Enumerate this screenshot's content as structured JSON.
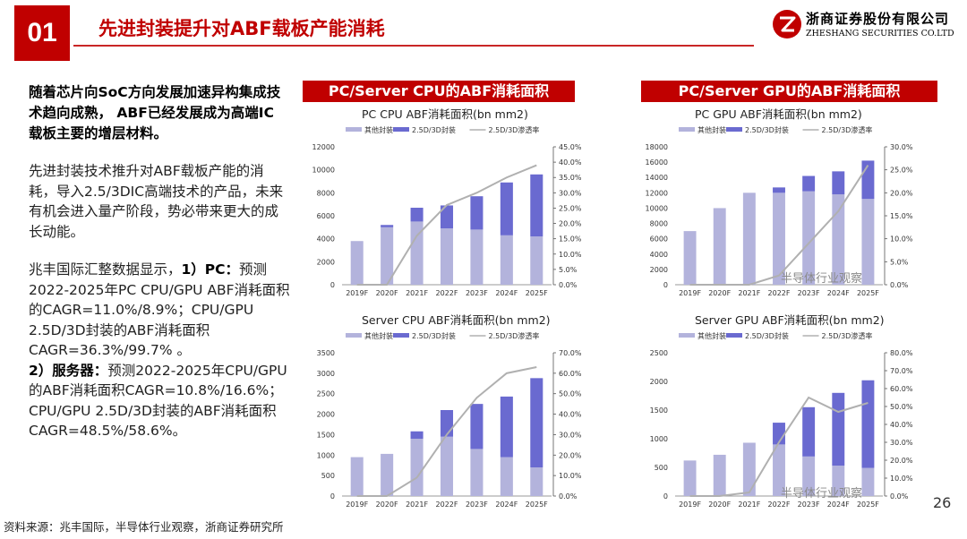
{
  "header": {
    "number": "01",
    "title": "先进封装提升对ABF载板产能消耗",
    "logo_cn": "浙商证券股份有限公司",
    "logo_en": "ZHESHANG SECURITIES CO.LTD"
  },
  "left": {
    "bold_text": "随着芯片向SoC方向发展加速异构集成技术趋向成熟， ABF已经发展成为高端IC载板主要的增层材料。",
    "para": "先进封装技术推升对ABF载板产能的消耗，导入2.5/3DIC高端技术的产品，未来有机会进入量产阶段，势必带来更大的成长动能。",
    "data_intro": "兆丰国际汇整数据显示，",
    "pc_label": "1）PC：",
    "pc_text": "预测2022-2025年PC CPU/GPU ABF消耗面积的CAGR=11.0%/8.9%；CPU/GPU 2.5D/3D封装的ABF消耗面积CAGR=36.3%/99.7% 。",
    "server_label": "2）服务器：",
    "server_text": "预测2022-2025年CPU/GPU的ABF消耗面积CAGR=10.8%/16.6%； CPU/GPU 2.5D/3D封装的ABF消耗面积CAGR=48.5%/58.6%。"
  },
  "banners": {
    "cpu": "PC/Server CPU的ABF消耗面积",
    "gpu": "PC/Server GPU的ABF消耗面积"
  },
  "footer": {
    "source": "资料来源：兆丰国际，半导体行业观察，浙商证券研究所",
    "page": "26",
    "watermark": "半导体行业观察"
  },
  "colors": {
    "brand_red": "#c00000",
    "other_pkg": "#b3b3dc",
    "adv_pkg": "#6a6ad0",
    "penetration_line": "#b0b0b0"
  },
  "chart_data": [
    {
      "id": "pc-cpu",
      "type": "bar",
      "title": "PC CPU ABF消耗面积(bn mm2)",
      "legend": [
        "其他封装",
        "2.5D/3D封装",
        "2.5D/3D渗透率"
      ],
      "categories": [
        "2019F",
        "2020F",
        "2021F",
        "2022F",
        "2023F",
        "2024F",
        "2025F"
      ],
      "series": [
        {
          "name": "其他封装",
          "kind": "bar-stack",
          "values": [
            3800,
            5000,
            5500,
            4900,
            4800,
            4300,
            4200
          ]
        },
        {
          "name": "2.5D/3D封装",
          "kind": "bar-stack",
          "values": [
            0,
            200,
            1200,
            2000,
            2900,
            4600,
            5400
          ]
        },
        {
          "name": "2.5D/3D渗透率",
          "kind": "line-right",
          "values": [
            0.0,
            0.0,
            0.16,
            0.26,
            0.3,
            0.35,
            0.39
          ]
        }
      ],
      "y_ticks": [
        0,
        2000,
        4000,
        6000,
        8000,
        10000,
        12000
      ],
      "y2_ticks": [
        "0.0%",
        "5.0%",
        "10.0%",
        "15.0%",
        "20.0%",
        "25.0%",
        "30.0%",
        "35.0%",
        "40.0%",
        "45.0%"
      ],
      "ylim": [
        0,
        12000
      ],
      "y2lim": [
        0,
        0.45
      ]
    },
    {
      "id": "pc-gpu",
      "type": "bar",
      "title": "PC GPU ABF消耗面积(bn mm2)",
      "legend": [
        "其他封装",
        "2.5D/3D封装",
        "2.5D/3D渗透率"
      ],
      "categories": [
        "2019F",
        "2020F",
        "2021F",
        "2022F",
        "2023F",
        "2024F",
        "2025F"
      ],
      "series": [
        {
          "name": "其他封装",
          "kind": "bar-stack",
          "values": [
            7000,
            10000,
            12000,
            12000,
            12200,
            11800,
            11200
          ]
        },
        {
          "name": "2.5D/3D封装",
          "kind": "bar-stack",
          "values": [
            0,
            0,
            0,
            700,
            2000,
            3000,
            5000
          ]
        },
        {
          "name": "2.5D/3D渗透率",
          "kind": "line-right",
          "values": [
            0.0,
            0.0,
            0.0,
            0.02,
            0.09,
            0.16,
            0.26
          ]
        }
      ],
      "y_ticks": [
        0,
        2000,
        4000,
        6000,
        8000,
        10000,
        12000,
        14000,
        16000,
        18000
      ],
      "y2_ticks": [
        "0.0%",
        "5.0%",
        "10.0%",
        "15.0%",
        "20.0%",
        "25.0%",
        "30.0%"
      ],
      "ylim": [
        0,
        18000
      ],
      "y2lim": [
        0,
        0.3
      ]
    },
    {
      "id": "server-cpu",
      "type": "bar",
      "title": "Server CPU ABF消耗面积(bn mm2)",
      "legend": [
        "其他封装",
        "2.5D/3D封装",
        "2.5D/3D渗透率"
      ],
      "categories": [
        "2019F",
        "2020F",
        "2021F",
        "2022F",
        "2023F",
        "2024F",
        "2025F"
      ],
      "series": [
        {
          "name": "其他封装",
          "kind": "bar-stack",
          "values": [
            950,
            1030,
            1400,
            1450,
            1150,
            950,
            700
          ]
        },
        {
          "name": "2.5D/3D封装",
          "kind": "bar-stack",
          "values": [
            0,
            0,
            180,
            650,
            1100,
            1480,
            2180
          ]
        },
        {
          "name": "2.5D/3D渗透率",
          "kind": "line-right",
          "values": [
            0.0,
            0.0,
            0.09,
            0.3,
            0.48,
            0.6,
            0.63
          ]
        }
      ],
      "y_ticks": [
        0,
        500,
        1000,
        1500,
        2000,
        2500,
        3000,
        3500
      ],
      "y2_ticks": [
        "0.0%",
        "10.0%",
        "20.0%",
        "30.0%",
        "40.0%",
        "50.0%",
        "60.0%",
        "70.0%"
      ],
      "ylim": [
        0,
        3500
      ],
      "y2lim": [
        0,
        0.7
      ]
    },
    {
      "id": "server-gpu",
      "type": "bar",
      "title": "Server GPU ABF消耗面积(bn mm2)",
      "legend": [
        "其他封装",
        "2.5D/3D封装",
        "2.5D/3D渗透率"
      ],
      "categories": [
        "2019F",
        "2020F",
        "2021F",
        "2022F",
        "2023F",
        "2024F",
        "2025F"
      ],
      "series": [
        {
          "name": "其他封装",
          "kind": "bar-stack",
          "values": [
            620,
            720,
            930,
            900,
            690,
            530,
            490
          ]
        },
        {
          "name": "2.5D/3D封装",
          "kind": "bar-stack",
          "values": [
            0,
            0,
            0,
            380,
            860,
            1270,
            1530
          ]
        },
        {
          "name": "2.5D/3D渗透率",
          "kind": "line-right",
          "values": [
            0.0,
            0.0,
            0.02,
            0.3,
            0.55,
            0.47,
            0.52
          ]
        }
      ],
      "y_ticks": [
        0,
        500,
        1000,
        1500,
        2000,
        2500
      ],
      "y2_ticks": [
        "0.0%",
        "10.0%",
        "20.0%",
        "30.0%",
        "40.0%",
        "50.0%",
        "60.0%",
        "70.0%",
        "80.0%"
      ],
      "ylim": [
        0,
        2500
      ],
      "y2lim": [
        0,
        0.8
      ]
    }
  ]
}
